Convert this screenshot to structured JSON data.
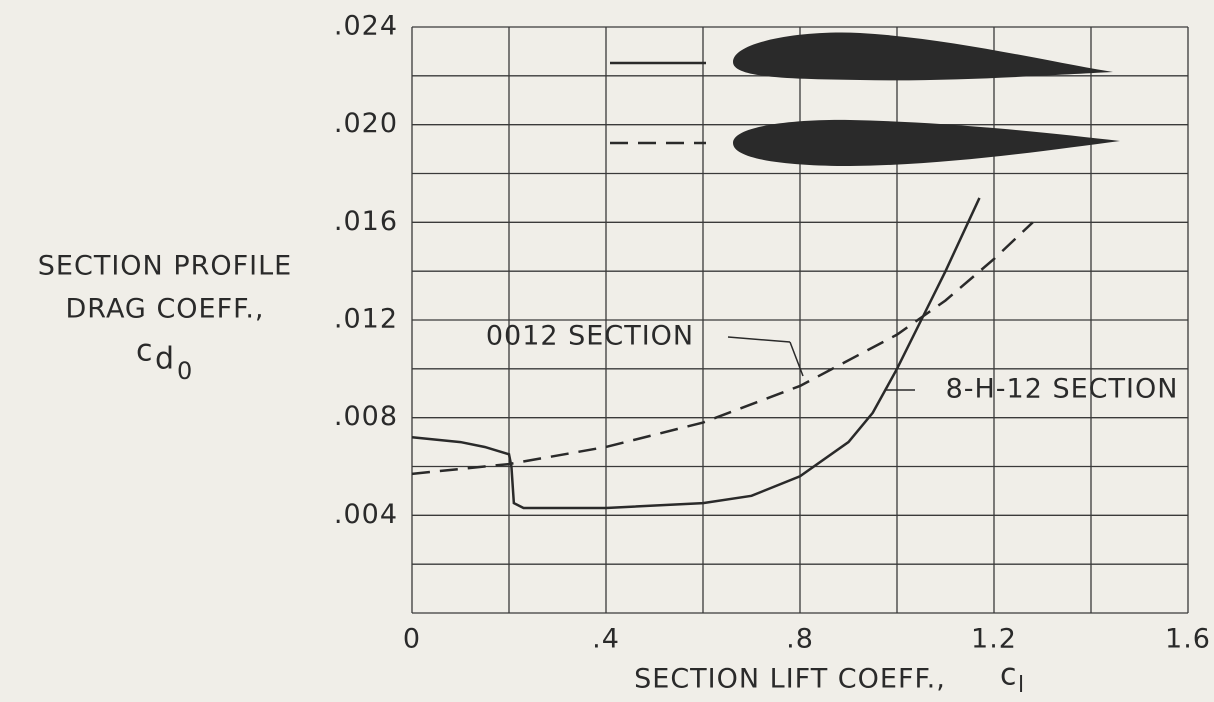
{
  "chart_data": {
    "type": "line",
    "y_label": [
      "SECTION PROFILE",
      "DRAG COEFF.,"
    ],
    "y_symbol": "c",
    "y_symbol_sub": "d",
    "y_symbol_subsub": "0",
    "x_label": "SECTION LIFT COEFF.,",
    "x_symbol": "c",
    "x_symbol_sub": "l",
    "xlim": [
      0,
      1.6
    ],
    "xticks": [
      0,
      {
        "value": 0.4,
        "label": ".4"
      },
      {
        "value": 0.8,
        "label": ".8"
      },
      1.2,
      1.6
    ],
    "ylim": [
      0,
      0.024
    ],
    "yticks": [
      {
        "value": 0.004,
        "label": ".004"
      },
      {
        "value": 0.008,
        "label": ".008"
      },
      {
        "value": 0.012,
        "label": ".012"
      },
      {
        "value": 0.016,
        "label": ".016"
      },
      {
        "value": 0.02,
        "label": ".020"
      },
      {
        "value": 0.024,
        "label": ".024"
      }
    ],
    "grid": true,
    "series": [
      {
        "name": "8-H-12 SECTION",
        "color": "#2a2a2a",
        "style": "solid",
        "x": [
          0,
          0.1,
          0.15,
          0.2,
          0.205,
          0.21,
          0.23,
          0.4,
          0.6,
          0.7,
          0.8,
          0.9,
          0.95,
          1.0,
          1.05,
          1.1,
          1.17
        ],
        "values": [
          0.0072,
          0.007,
          0.0068,
          0.0065,
          0.006,
          0.0045,
          0.0043,
          0.0043,
          0.0045,
          0.0048,
          0.0056,
          0.007,
          0.0082,
          0.01,
          0.012,
          0.014,
          0.017
        ]
      },
      {
        "name": "0012 SECTION",
        "color": "#2a2a2a",
        "style": "dashed",
        "x": [
          0,
          0.2,
          0.4,
          0.6,
          0.8,
          1.0,
          1.1,
          1.2,
          1.28
        ],
        "values": [
          0.0057,
          0.0061,
          0.0068,
          0.0078,
          0.0093,
          0.0114,
          0.0128,
          0.0145,
          0.016
        ]
      }
    ]
  }
}
